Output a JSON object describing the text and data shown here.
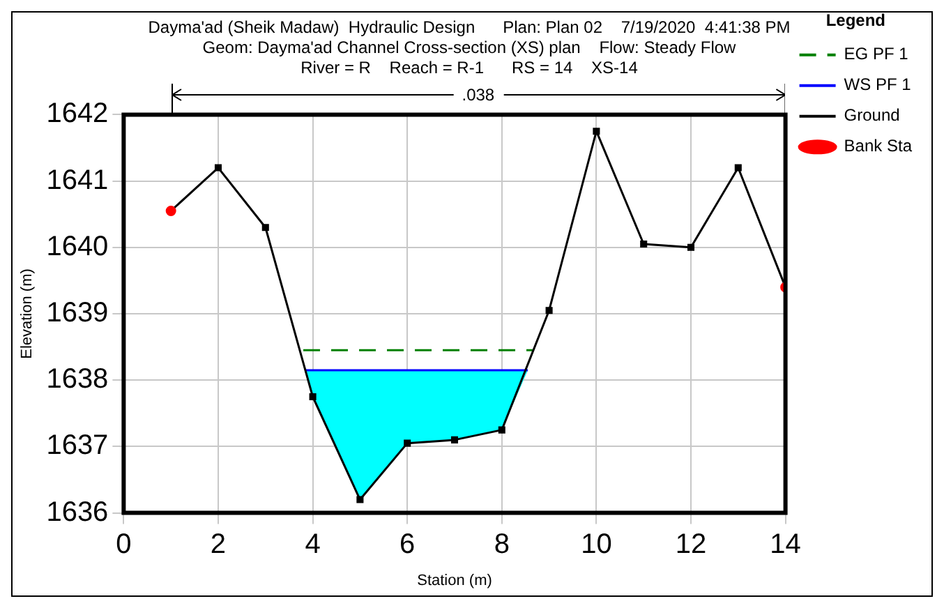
{
  "chart_data": {
    "type": "line",
    "title": "Dayma'ad (Sheik Madaw)  Hydraulic Design      Plan: Plan 02    7/19/2020  4:41:38 PM",
    "subtitle": "Geom: Dayma'ad Channel Cross-section (XS) plan    Flow: Steady Flow\nRiver = R    Reach = R-1      RS = 14    XS-14",
    "xlabel": "Station (m)",
    "ylabel": "Elevation (m)",
    "legend_title": "Legend",
    "annotations": [
      ".038"
    ],
    "xlim": [
      0,
      14
    ],
    "xticks": [
      0,
      2,
      4,
      6,
      8,
      10,
      12,
      14
    ],
    "ylim": [
      1636,
      1642
    ],
    "yticks": [
      1636,
      1637,
      1638,
      1639,
      1640,
      1641,
      1642
    ],
    "grid": true,
    "legend": "right",
    "series": [
      {
        "name": "EG PF 1",
        "color": "#008000",
        "line_style": "dashed",
        "marker": "none",
        "x": [
          3.8,
          8.65
        ],
        "values": [
          1638.45,
          1638.45
        ]
      },
      {
        "name": "WS PF 1",
        "color": "#0000ff",
        "line_style": "solid",
        "marker": "none",
        "x": [
          3.85,
          4,
          5,
          6,
          7,
          8,
          8.55
        ],
        "values": [
          1638.15,
          1638.15,
          1638.15,
          1638.15,
          1638.15,
          1638.15,
          1638.15
        ],
        "lower": [
          1638.15,
          1637.75,
          1636.2,
          1637.05,
          1637.1,
          1637.25,
          1638.15
        ],
        "upper": [
          1638.15,
          1638.15,
          1638.15,
          1638.15,
          1638.15,
          1638.15,
          1638.15
        ]
      },
      {
        "name": "Ground",
        "color": "#000000",
        "line_style": "solid",
        "marker": "square",
        "x": [
          1,
          2,
          3,
          4,
          5,
          6,
          7,
          8,
          9,
          10,
          11,
          12,
          13,
          14
        ],
        "values": [
          1640.55,
          1641.2,
          1640.3,
          1637.75,
          1636.2,
          1637.05,
          1637.1,
          1637.25,
          1639.05,
          1641.75,
          1640.05,
          1640.0,
          1641.2,
          1639.4
        ]
      },
      {
        "name": "Bank Sta",
        "type": "scatter",
        "color": "#ff0000",
        "marker": "circle",
        "x": [
          1,
          14
        ],
        "values": [
          1640.55,
          1639.4
        ]
      }
    ]
  }
}
